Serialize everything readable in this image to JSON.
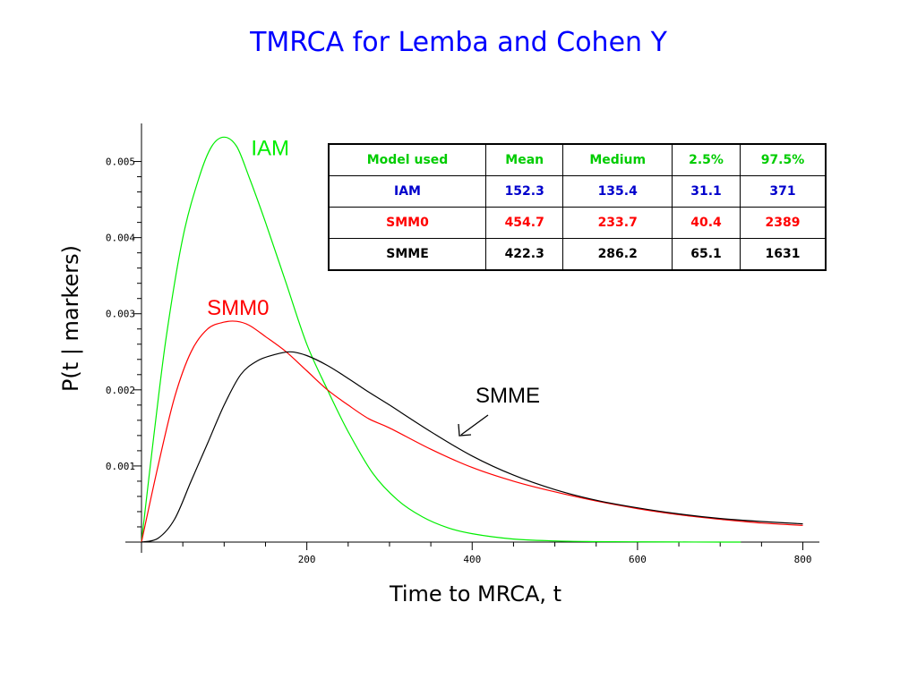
{
  "title": "TMRCA for Lemba and Cohen Y",
  "colors": {
    "title": "#0000ff",
    "iam": "#00ee00",
    "smm0": "#ff0000",
    "smme": "#000000"
  },
  "table": {
    "header": [
      "Model used",
      "Mean",
      "Medium",
      "2.5%",
      "97.5%"
    ],
    "rows": [
      [
        "IAM",
        "152.3",
        "135.4",
        "31.1",
        "371"
      ],
      [
        "SMM0",
        "454.7",
        "233.7",
        "40.4",
        "2389"
      ],
      [
        "SMME",
        "422.3",
        "286.2",
        "65.1",
        "1631"
      ]
    ]
  },
  "chart_data": {
    "type": "line",
    "title": "TMRCA for Lemba and Cohen Y",
    "xlabel": "Time to MRCA, t",
    "ylabel": "P(t | markers)",
    "xlim": [
      0,
      820
    ],
    "ylim": [
      0,
      0.0055
    ],
    "x_ticks": [
      200,
      400,
      600,
      800
    ],
    "y_ticks": [
      0.001,
      0.002,
      0.003,
      0.004,
      0.005
    ],
    "x_tick_labels": [
      "200",
      "400",
      "600",
      "800"
    ],
    "y_tick_labels": [
      "0.001",
      "0.002",
      "0.003",
      "0.004",
      "0.005"
    ],
    "grid": false,
    "legend": "none",
    "series": [
      {
        "name": "IAM",
        "x": [
          0,
          15,
          30,
          50,
          70,
          85,
          100,
          115,
          130,
          150,
          175,
          200,
          225,
          250,
          280,
          310,
          340,
          370,
          400,
          450,
          500,
          550,
          600,
          650,
          700,
          725
        ],
        "y": [
          0,
          0.0014,
          0.0027,
          0.004,
          0.0048,
          0.0052,
          0.00532,
          0.0052,
          0.0048,
          0.0042,
          0.0034,
          0.0026,
          0.002,
          0.00145,
          0.0009,
          0.00055,
          0.00033,
          0.00019,
          0.00011,
          4e-05,
          1.5e-05,
          6e-06,
          3e-06,
          1e-06,
          5e-07,
          3e-07
        ]
      },
      {
        "name": "SMM0",
        "x": [
          0,
          20,
          40,
          60,
          80,
          100,
          115,
          130,
          150,
          175,
          200,
          225,
          250,
          275,
          300,
          350,
          400,
          450,
          500,
          550,
          600,
          650,
          700,
          750,
          800
        ],
        "y": [
          0,
          0.001,
          0.0019,
          0.0025,
          0.0028,
          0.00289,
          0.0029,
          0.00285,
          0.0027,
          0.0025,
          0.00225,
          0.002,
          0.0018,
          0.00162,
          0.0015,
          0.00122,
          0.00098,
          0.0008,
          0.00066,
          0.00054,
          0.00044,
          0.00036,
          0.0003,
          0.00025,
          0.00022
        ]
      },
      {
        "name": "SMME",
        "x": [
          0,
          20,
          40,
          60,
          80,
          100,
          120,
          140,
          160,
          180,
          200,
          225,
          250,
          275,
          300,
          350,
          400,
          450,
          500,
          550,
          600,
          650,
          700,
          750,
          800
        ],
        "y": [
          0,
          5e-05,
          0.0003,
          0.0008,
          0.0013,
          0.0018,
          0.0022,
          0.00238,
          0.00246,
          0.0025,
          0.00245,
          0.00232,
          0.00215,
          0.00197,
          0.0018,
          0.00145,
          0.00113,
          0.00088,
          0.00069,
          0.00055,
          0.00045,
          0.00037,
          0.00031,
          0.00027,
          0.00024
        ]
      }
    ],
    "annotations": [
      {
        "text": "IAM",
        "series": "IAM"
      },
      {
        "text": "SMM0",
        "series": "SMM0"
      },
      {
        "text": "SMME",
        "series": "SMME",
        "arrow": true
      }
    ]
  }
}
